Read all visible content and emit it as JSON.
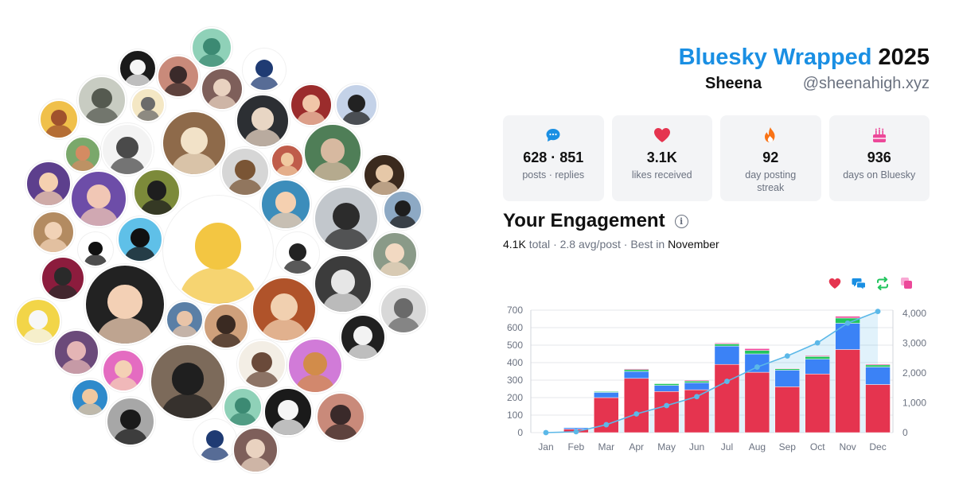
{
  "header": {
    "brand": "Bluesky Wrapped",
    "year": "2025",
    "display_name": "Sheena",
    "handle": "@sheenahigh.xyz"
  },
  "stats": [
    {
      "icon": "chat-bubble-icon",
      "value": "628 · 851",
      "label": "posts · replies",
      "color": "#1a8fe3"
    },
    {
      "icon": "heart-icon",
      "value": "3.1K",
      "label": "likes received",
      "color": "#e5344f"
    },
    {
      "icon": "flame-icon",
      "value": "92",
      "label": "day posting streak",
      "color": "#f97316"
    },
    {
      "icon": "cake-icon",
      "value": "936",
      "label": "days on Bluesky",
      "color": "#ec4899"
    }
  ],
  "engagement": {
    "title": "Your Engagement",
    "total": "4.1K",
    "total_label": "total",
    "avg": "2.8 avg/post",
    "best_prefix": "Best in",
    "best_month": "November",
    "legend_icons": [
      {
        "name": "likes-icon",
        "color": "#e5344f"
      },
      {
        "name": "replies-icon",
        "color": "#1a8fe3"
      },
      {
        "name": "reposts-icon",
        "color": "#22c55e"
      },
      {
        "name": "quotes-icon",
        "color": "#ec4899"
      }
    ]
  },
  "chart_data": {
    "type": "bar",
    "stacked": true,
    "categories": [
      "Jan",
      "Feb",
      "Mar",
      "Apr",
      "May",
      "Jun",
      "Jul",
      "Aug",
      "Sep",
      "Oct",
      "Nov",
      "Dec"
    ],
    "series": [
      {
        "color": "#e5344f",
        "values": [
          0,
          20,
          200,
          310,
          235,
          245,
          390,
          345,
          262,
          335,
          475,
          275
        ]
      },
      {
        "color": "#3b82f6",
        "values": [
          0,
          8,
          30,
          40,
          35,
          40,
          105,
          105,
          95,
          85,
          150,
          100
        ]
      },
      {
        "color": "#22c55e",
        "values": [
          0,
          2,
          5,
          10,
          10,
          10,
          12,
          20,
          8,
          15,
          30,
          12
        ]
      },
      {
        "color": "#ec4899",
        "values": [
          0,
          0,
          2,
          5,
          2,
          5,
          5,
          10,
          3,
          5,
          10,
          5
        ]
      }
    ],
    "cumulative_line": {
      "color": "#5bb8e8",
      "values": [
        0,
        30,
        265,
        625,
        905,
        1205,
        1715,
        2195,
        2565,
        3005,
        3665,
        4057
      ]
    },
    "y_left": {
      "ticks": [
        0,
        100,
        200,
        300,
        400,
        500,
        600,
        700
      ],
      "ylim": [
        0,
        700
      ]
    },
    "y_right": {
      "ticks": [
        "0",
        "1,000",
        "2,000",
        "3,000",
        "4,000"
      ],
      "ylim": [
        0,
        4100
      ]
    },
    "grid": true
  },
  "avatars": {
    "items": [
      {
        "bg": "#8fd1b8",
        "fg": "#3c8a73"
      },
      {
        "bg": "#1a1a1a",
        "fg": "#f5f5f5"
      },
      {
        "bg": "#c98a7a",
        "fg": "#3a2a2a"
      },
      {
        "bg": "#ffffff",
        "fg": "#1f3b73"
      },
      {
        "bg": "#7e5f5a",
        "fg": "#e9d2c0"
      },
      {
        "bg": "#c8ccc2",
        "fg": "#555a50"
      },
      {
        "bg": "#f4e7c4",
        "fg": "#6b6b6b"
      },
      {
        "bg": "#9b2c2c",
        "fg": "#f1c6a8"
      },
      {
        "bg": "#c4d2e8",
        "fg": "#222222"
      },
      {
        "bg": "#f0c04a",
        "fg": "#a0522d"
      },
      {
        "bg": "#2c2f33",
        "fg": "#e8d6c4"
      },
      {
        "bg": "#8e6a4a",
        "fg": "#f2e2c8"
      },
      {
        "bg": "#f3f3f3",
        "fg": "#4a4a4a"
      },
      {
        "bg": "#4f7e57",
        "fg": "#d7b9a0"
      },
      {
        "bg": "#7aa86b",
        "fg": "#d48b62"
      },
      {
        "bg": "#3b2a1e",
        "fg": "#e6c8a8"
      },
      {
        "bg": "#bf5c4a",
        "fg": "#f0c9a0"
      },
      {
        "bg": "#5d3f8d",
        "fg": "#f5d0b0"
      },
      {
        "bg": "#7c8a3a",
        "fg": "#1e1e1e"
      },
      {
        "bg": "#d6d6d6",
        "fg": "#7a5535"
      },
      {
        "bg": "#6d4da8",
        "fg": "#f1c7b5"
      },
      {
        "bg": "#3c8dbb",
        "fg": "#f5d0b0"
      },
      {
        "bg": "#c2c7cc",
        "fg": "#2c2c2c"
      },
      {
        "bg": "#8da9c4",
        "fg": "#1e1e1e"
      },
      {
        "bg": "#ffffff",
        "fg": "#f3c642"
      },
      {
        "bg": "#b38b61",
        "fg": "#f1d2b6"
      },
      {
        "bg": "#5fc0e8",
        "fg": "#111111"
      },
      {
        "bg": "#ffffff",
        "fg": "#111111"
      },
      {
        "bg": "#ffffff",
        "fg": "#222222"
      },
      {
        "bg": "#8a9a88",
        "fg": "#f2d9c2"
      },
      {
        "bg": "#8c1c3d",
        "fg": "#2a2a2a"
      },
      {
        "bg": "#222222",
        "fg": "#f3d0b5"
      },
      {
        "bg": "#b0532a",
        "fg": "#f1d0b0"
      },
      {
        "bg": "#3c3c3c",
        "fg": "#e6e6e6"
      },
      {
        "bg": "#f2d548",
        "fg": "#f7f7f7"
      },
      {
        "bg": "#5a7fa6",
        "fg": "#e8c4a8"
      },
      {
        "bg": "#cfa07b",
        "fg": "#3a2a22"
      },
      {
        "bg": "#d8d8d8",
        "fg": "#6a6a6a"
      },
      {
        "bg": "#202020",
        "fg": "#f3f3f3"
      },
      {
        "bg": "#6b4a7a",
        "fg": "#e4b5b5"
      },
      {
        "bg": "#e46cc1",
        "fg": "#f4d1b5"
      },
      {
        "bg": "#7c6a5a",
        "fg": "#1f1f1f"
      },
      {
        "bg": "#f3eee5",
        "fg": "#6a4a3a"
      },
      {
        "bg": "#d17bd8",
        "fg": "#d28c4a"
      },
      {
        "bg": "#2e8acb",
        "fg": "#f0c8a0"
      },
      {
        "bg": "#a7a7a7",
        "fg": "#1a1a1a"
      }
    ]
  }
}
